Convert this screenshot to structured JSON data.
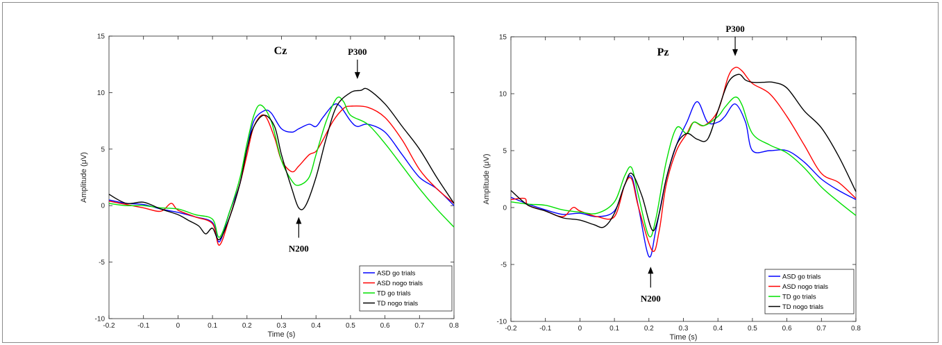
{
  "colors": {
    "ASD go trials": "#0000ff",
    "ASD nogo trials": "#ff0000",
    "TD go trials": "#00e000",
    "TD nogo trials": "#000000"
  },
  "chart_data": [
    {
      "type": "line",
      "title": "Cz",
      "xlabel": "Time (s)",
      "ylabel": "Amplitude (μV)",
      "xlim": [
        -0.2,
        0.8
      ],
      "ylim": [
        -10,
        15
      ],
      "xticks": [
        -0.2,
        -0.1,
        0,
        0.1,
        0.2,
        0.3,
        0.4,
        0.5,
        0.6,
        0.7,
        0.8
      ],
      "yticks": [
        -10,
        -5,
        0,
        5,
        10,
        15
      ],
      "legend": "bottom-right",
      "annotations": [
        {
          "label": "P300",
          "x": 0.52,
          "y": 11.2,
          "direction": "down"
        },
        {
          "label": "N200",
          "x": 0.35,
          "y": -1.0,
          "direction": "up"
        }
      ],
      "series": [
        {
          "name": "ASD go trials",
          "x": [
            -0.2,
            -0.15,
            -0.1,
            -0.05,
            0,
            0.05,
            0.1,
            0.12,
            0.15,
            0.18,
            0.2,
            0.22,
            0.25,
            0.27,
            0.3,
            0.33,
            0.35,
            0.38,
            0.4,
            0.42,
            0.45,
            0.47,
            0.5,
            0.52,
            0.55,
            0.6,
            0.65,
            0.7,
            0.75,
            0.8
          ],
          "y": [
            0.5,
            0.2,
            0.1,
            -0.3,
            -0.6,
            -1.0,
            -1.5,
            -3.2,
            -0.5,
            2.0,
            5.0,
            7.5,
            8.4,
            8.2,
            6.8,
            6.5,
            6.8,
            7.2,
            7.0,
            7.8,
            8.9,
            8.8,
            7.5,
            7.0,
            7.2,
            6.5,
            4.5,
            2.5,
            1.5,
            0
          ]
        },
        {
          "name": "ASD nogo trials",
          "x": [
            -0.2,
            -0.15,
            -0.1,
            -0.05,
            -0.02,
            0,
            0.05,
            0.1,
            0.12,
            0.15,
            0.18,
            0.2,
            0.22,
            0.25,
            0.28,
            0.3,
            0.33,
            0.35,
            0.38,
            0.4,
            0.42,
            0.45,
            0.48,
            0.5,
            0.55,
            0.6,
            0.65,
            0.7,
            0.75,
            0.8
          ],
          "y": [
            0.4,
            0.1,
            -0.2,
            -0.5,
            0.2,
            -0.4,
            -1.0,
            -1.6,
            -3.5,
            -1.0,
            2.0,
            4.5,
            7.0,
            8.0,
            6.0,
            4.0,
            3.0,
            3.5,
            4.5,
            4.8,
            5.8,
            7.5,
            8.6,
            8.8,
            8.7,
            7.8,
            5.8,
            3.2,
            1.5,
            0.2
          ]
        },
        {
          "name": "TD go trials",
          "x": [
            -0.2,
            -0.15,
            -0.1,
            -0.05,
            0,
            0.05,
            0.1,
            0.12,
            0.15,
            0.18,
            0.2,
            0.22,
            0.24,
            0.27,
            0.3,
            0.33,
            0.35,
            0.38,
            0.4,
            0.43,
            0.46,
            0.48,
            0.5,
            0.55,
            0.6,
            0.65,
            0.7,
            0.75,
            0.8
          ],
          "y": [
            0.2,
            0.0,
            0.0,
            -0.2,
            -0.3,
            -0.8,
            -1.2,
            -2.8,
            -0.5,
            2.5,
            5.5,
            8.0,
            8.9,
            7.5,
            4.0,
            2.2,
            1.8,
            2.5,
            4.5,
            7.5,
            9.5,
            9.2,
            8.0,
            7.2,
            5.5,
            3.5,
            1.5,
            -0.3,
            -1.9
          ]
        },
        {
          "name": "TD nogo trials",
          "x": [
            -0.2,
            -0.15,
            -0.1,
            -0.05,
            0,
            0.03,
            0.06,
            0.08,
            0.1,
            0.12,
            0.15,
            0.18,
            0.2,
            0.22,
            0.25,
            0.28,
            0.3,
            0.33,
            0.35,
            0.37,
            0.4,
            0.43,
            0.46,
            0.5,
            0.53,
            0.55,
            0.6,
            0.65,
            0.7,
            0.75,
            0.8
          ],
          "y": [
            1.0,
            0.2,
            0.3,
            -0.3,
            -0.8,
            -1.3,
            -1.8,
            -2.5,
            -2.0,
            -3.0,
            -1.0,
            2.0,
            5.0,
            7.0,
            8.0,
            7.0,
            4.5,
            1.5,
            -0.2,
            0.0,
            2.5,
            6.0,
            8.8,
            10.0,
            10.2,
            10.3,
            9.0,
            7.0,
            5.0,
            2.5,
            0.2
          ]
        }
      ]
    },
    {
      "type": "line",
      "title": "Pz",
      "xlabel": "Time (s)",
      "ylabel": "Amplitude (μV)",
      "xlim": [
        -0.2,
        0.8
      ],
      "ylim": [
        -10,
        15
      ],
      "xticks": [
        -0.2,
        -0.1,
        0,
        0.1,
        0.2,
        0.3,
        0.4,
        0.5,
        0.6,
        0.7,
        0.8
      ],
      "yticks": [
        -10,
        -5,
        0,
        5,
        10,
        15
      ],
      "legend": "bottom-right",
      "annotations": [
        {
          "label": "P300",
          "x": 0.45,
          "y": 13.3,
          "direction": "down"
        },
        {
          "label": "N200",
          "x": 0.205,
          "y": -5.2,
          "direction": "up"
        }
      ],
      "series": [
        {
          "name": "ASD go trials",
          "x": [
            -0.2,
            -0.15,
            -0.1,
            -0.05,
            0,
            0.05,
            0.1,
            0.13,
            0.15,
            0.17,
            0.2,
            0.22,
            0.25,
            0.28,
            0.31,
            0.34,
            0.37,
            0.4,
            0.42,
            0.45,
            0.48,
            0.5,
            0.55,
            0.6,
            0.65,
            0.7,
            0.75,
            0.8
          ],
          "y": [
            0.9,
            0.3,
            -0.2,
            -0.6,
            -0.5,
            -0.8,
            -0.3,
            2.0,
            2.7,
            0.0,
            -4.3,
            -2.0,
            2.5,
            5.5,
            7.5,
            9.3,
            7.5,
            7.5,
            8.0,
            9.1,
            7.5,
            5.0,
            5.0,
            5.0,
            4.0,
            2.5,
            1.5,
            0.7
          ]
        },
        {
          "name": "ASD nogo trials",
          "x": [
            -0.2,
            -0.16,
            -0.15,
            -0.1,
            -0.05,
            -0.02,
            0,
            0.05,
            0.1,
            0.13,
            0.15,
            0.17,
            0.21,
            0.23,
            0.25,
            0.28,
            0.31,
            0.33,
            0.36,
            0.4,
            0.43,
            0.45,
            0.47,
            0.5,
            0.55,
            0.6,
            0.65,
            0.7,
            0.75,
            0.8
          ],
          "y": [
            0.7,
            0.8,
            0.2,
            -0.3,
            -0.8,
            0.0,
            -0.3,
            -0.8,
            -0.8,
            2.0,
            2.5,
            0.0,
            -3.8,
            -2.0,
            2.0,
            5.0,
            6.5,
            7.5,
            7.2,
            8.5,
            11.5,
            12.3,
            12.0,
            10.9,
            10.0,
            8.0,
            5.5,
            3.0,
            2.2,
            0.8
          ]
        },
        {
          "name": "TD go trials",
          "x": [
            -0.2,
            -0.15,
            -0.1,
            -0.05,
            0,
            0.05,
            0.1,
            0.13,
            0.15,
            0.17,
            0.2,
            0.22,
            0.25,
            0.28,
            0.31,
            0.33,
            0.36,
            0.4,
            0.42,
            0.45,
            0.47,
            0.5,
            0.55,
            0.6,
            0.65,
            0.7,
            0.75,
            0.8
          ],
          "y": [
            0.5,
            0.3,
            0.2,
            -0.2,
            -0.4,
            -0.5,
            0.5,
            2.8,
            3.5,
            1.0,
            -2.5,
            -1.0,
            4.0,
            7.0,
            6.5,
            7.5,
            7.2,
            8.0,
            8.8,
            9.7,
            9.0,
            6.5,
            5.5,
            4.8,
            3.5,
            1.8,
            0.5,
            -0.7
          ]
        },
        {
          "name": "TD nogo trials",
          "x": [
            -0.2,
            -0.15,
            -0.1,
            -0.05,
            0,
            0.04,
            0.07,
            0.1,
            0.13,
            0.15,
            0.18,
            0.21,
            0.23,
            0.25,
            0.28,
            0.31,
            0.34,
            0.37,
            0.4,
            0.43,
            0.46,
            0.48,
            0.5,
            0.53,
            0.56,
            0.6,
            0.65,
            0.7,
            0.75,
            0.8
          ],
          "y": [
            1.5,
            0.2,
            -0.3,
            -0.9,
            -1.1,
            -1.5,
            -1.7,
            -0.5,
            2.0,
            3.0,
            1.0,
            -2.0,
            -0.5,
            2.5,
            5.5,
            6.5,
            6.0,
            6.0,
            8.5,
            11.0,
            11.7,
            11.2,
            11.0,
            11.0,
            11.0,
            10.5,
            8.5,
            7.0,
            4.5,
            1.4
          ]
        }
      ]
    }
  ]
}
